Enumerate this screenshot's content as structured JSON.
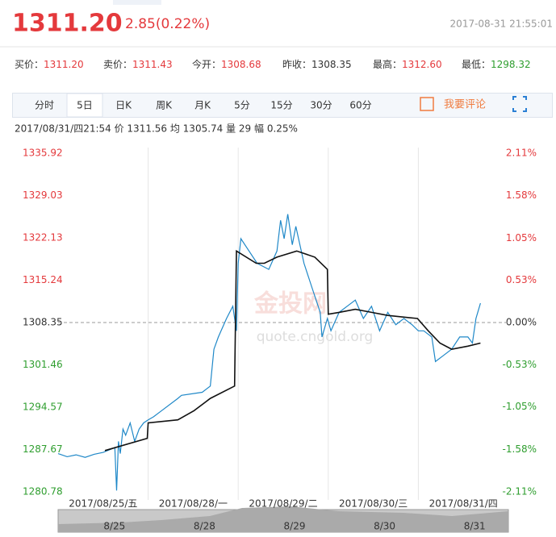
{
  "header": {
    "price": "1311.20",
    "change": "2.85(0.22%)",
    "time": "2017-08-31 21:55:01"
  },
  "quotes": [
    {
      "label": "买价：",
      "value": "1311.20",
      "color": "#e4393c"
    },
    {
      "label": "卖价：",
      "value": "1311.43",
      "color": "#e4393c"
    },
    {
      "label": "今开：",
      "value": "1308.68",
      "color": "#e4393c"
    },
    {
      "label": "昨收：",
      "value": "1308.35",
      "color": "#333333"
    },
    {
      "label": "最高：",
      "value": "1312.60",
      "color": "#e4393c"
    },
    {
      "label": "最低：",
      "value": "1298.32",
      "color": "#2f9e2f"
    }
  ],
  "tabs": [
    "分时",
    "5日",
    "日K",
    "周K",
    "月K",
    "5分",
    "15分",
    "30分",
    "60分"
  ],
  "active_tab": 1,
  "comment": "我要评论",
  "info": "2017/08/31/四21:54  价 1311.56  均 1305.74  量 29  幅 0.25%",
  "watermark": {
    "brand": "金投网",
    "site": "quote.cngold.org"
  },
  "navigator": [
    "8/25",
    "8/28",
    "8/29",
    "8/30",
    "8/31"
  ],
  "chart_data": {
    "type": "line",
    "xlim": [
      0,
      5
    ],
    "xticks": [
      {
        "value": 0.5,
        "label": "2017/08/25/五"
      },
      {
        "value": 1.5,
        "label": "2017/08/28/一"
      },
      {
        "value": 2.5,
        "label": "2017/08/29/二"
      },
      {
        "value": 3.5,
        "label": "2017/08/30/三"
      },
      {
        "value": 4.5,
        "label": "2017/08/31/四"
      }
    ],
    "xgrid": [
      1,
      2,
      3,
      4
    ],
    "ylim": [
      1280.78,
      1335.92
    ],
    "yticks": [
      1335.92,
      1329.03,
      1322.13,
      1315.24,
      1308.35,
      1301.46,
      1294.57,
      1287.67,
      1280.78
    ],
    "y2lim": [
      -2.11,
      2.11
    ],
    "y2ticks": [
      {
        "value": 2.11,
        "label": "2.11%"
      },
      {
        "value": 1.58,
        "label": "1.58%"
      },
      {
        "value": 1.05,
        "label": "1.05%"
      },
      {
        "value": 0.53,
        "label": "0.53%"
      },
      {
        "value": 0,
        "label": "0.00%"
      },
      {
        "value": -0.53,
        "label": "-0.53%"
      },
      {
        "value": -1.05,
        "label": "-1.05%"
      },
      {
        "value": -1.58,
        "label": "-1.58%"
      },
      {
        "value": -2.11,
        "label": "-2.11%"
      }
    ],
    "baseline": 1308.35,
    "up_color": "#e4393c",
    "down_color": "#2f9e2f",
    "flat_color": "#333333",
    "series": [
      {
        "color": "#1f88c8",
        "x": [
          0,
          0.1,
          0.2,
          0.3,
          0.4,
          0.5,
          0.6,
          0.63,
          0.65,
          0.67,
          0.69,
          0.72,
          0.75,
          0.8,
          0.85,
          0.9,
          0.95,
          1,
          1.06,
          1.15,
          1.33,
          1.37,
          1.6,
          1.69,
          1.73,
          1.78,
          1.87,
          1.94,
          1.98,
          2.0,
          2.03,
          2.12,
          2.21,
          2.34,
          2.43,
          2.47,
          2.51,
          2.55,
          2.6,
          2.64,
          2.73,
          2.82,
          2.91,
          2.93,
          2.99,
          3.03,
          3.12,
          3.21,
          3.3,
          3.39,
          3.48,
          3.57,
          3.66,
          3.75,
          3.84,
          3.93,
          4.0,
          4.06,
          4.15,
          4.19,
          4.28,
          4.37,
          4.46,
          4.55,
          4.6,
          4.64,
          4.69
        ],
        "values": [
          1287,
          1286.5,
          1286.8,
          1286.4,
          1286.9,
          1287.2,
          1287.8,
          1288,
          1281,
          1289,
          1287,
          1291,
          1290,
          1292,
          1289,
          1291,
          1292,
          1292.5,
          1293,
          1294,
          1296,
          1296.5,
          1297,
          1298,
          1304,
          1306,
          1309,
          1311,
          1307,
          1318,
          1322,
          1320,
          1318,
          1317,
          1320,
          1325,
          1322,
          1326,
          1321,
          1324,
          1318,
          1314,
          1310,
          1306,
          1309,
          1307,
          1310,
          1311,
          1312,
          1309,
          1311,
          1307,
          1310,
          1308,
          1309,
          1308,
          1307,
          1307,
          1306,
          1302,
          1303,
          1304,
          1306,
          1306,
          1305,
          1309,
          1311.5
        ]
      },
      {
        "color": "#111111",
        "x": [
          0.52,
          0.99,
          1.0,
          1.33,
          1.51,
          1.69,
          1.96,
          1.98,
          2.2,
          2.29,
          2.43,
          2.65,
          2.85,
          2.99,
          3.0,
          3.12,
          3.3,
          3.48,
          3.66,
          3.99,
          4.11,
          4.24,
          4.37,
          4.55,
          4.69
        ],
        "values": [
          1287.5,
          1289.5,
          1292,
          1292.5,
          1294,
          1296,
          1298,
          1320,
          1318,
          1318,
          1319,
          1320,
          1319,
          1317,
          1309.7,
          1310,
          1310.5,
          1310,
          1309.5,
          1309,
          1307,
          1305,
          1304,
          1304.5,
          1305
        ]
      }
    ]
  }
}
